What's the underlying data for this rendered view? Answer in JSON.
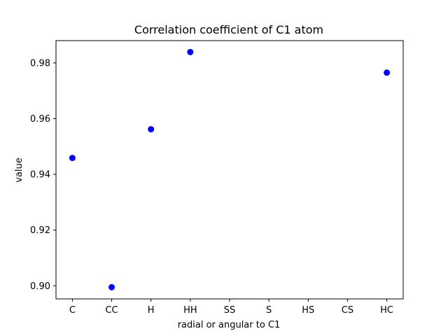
{
  "chart_data": {
    "type": "scatter",
    "title": "Correlation coefficient of C1 atom",
    "xlabel": "radial or angular to C1",
    "ylabel": "value",
    "categories": [
      "C",
      "CC",
      "H",
      "HH",
      "SS",
      "S",
      "HS",
      "CS",
      "HC"
    ],
    "values": [
      0.9459,
      0.8995,
      0.9562,
      0.9839,
      null,
      null,
      null,
      null,
      0.9765
    ],
    "ylim": [
      0.8953,
      0.988
    ],
    "yticks": [
      "0.90",
      "0.92",
      "0.94",
      "0.96",
      "0.98"
    ],
    "ytick_values": [
      0.9,
      0.92,
      0.94,
      0.96,
      0.98
    ],
    "grid": false,
    "colors": {
      "marker": "#0000ff",
      "axis": "#000000"
    }
  }
}
